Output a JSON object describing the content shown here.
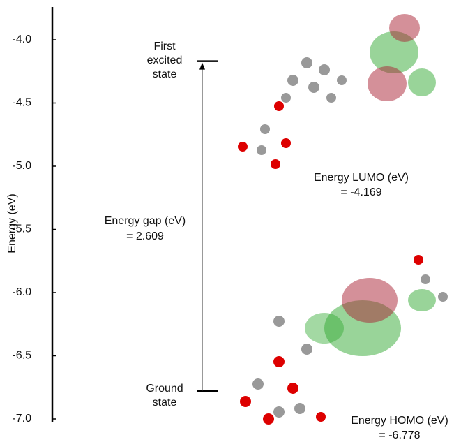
{
  "chart_data": {
    "type": "energy-level",
    "ylabel": "Energy (eV)",
    "ylim": [
      -7.0,
      -3.74
    ],
    "yticks": [
      {
        "value": -4.0,
        "label": "-4.0"
      },
      {
        "value": -4.5,
        "label": "-4.5"
      },
      {
        "value": -5.0,
        "label": "-5.0"
      },
      {
        "value": -5.5,
        "label": "-5.5"
      },
      {
        "value": -6.0,
        "label": "-6.0"
      },
      {
        "value": -6.5,
        "label": "-6.5"
      },
      {
        "value": -7.0,
        "label": "-7.0"
      }
    ],
    "categories": [
      "First excited state",
      "Ground state"
    ],
    "values": [
      -4.169,
      -6.778
    ],
    "color": "#000000",
    "gap": {
      "label": "Energy gap (eV)",
      "value": 2.609,
      "value_label": "= 2.609"
    },
    "orbitals": [
      {
        "name": "Energy LUMO (eV)",
        "value": -4.169,
        "value_label": "= -4.169"
      },
      {
        "name": "Energy HOMO (eV)",
        "value": -6.778,
        "value_label": "= -6.778"
      }
    ]
  }
}
